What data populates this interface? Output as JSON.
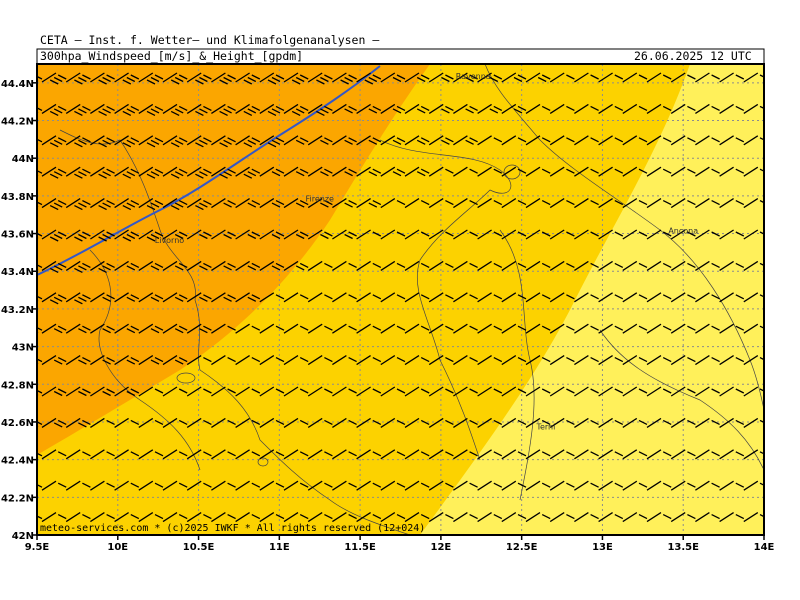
{
  "header": {
    "line1": "CETA — Inst. f. Wetter— und Klimafolgenanalysen —",
    "title": "300hpa_Windspeed_[m/s]_&_Height_[gpdm]",
    "datetime": "26.06.2025 12 UTC"
  },
  "footer": {
    "credit": "meteo-services.com * (c)2025 IWKF * All rights reserved (12+024)"
  },
  "axes": {
    "lon_range": [
      9.5,
      14.0
    ],
    "lat_range": [
      42.0,
      44.5
    ],
    "lon_ticks": [
      "9.5E",
      "10E",
      "10.5E",
      "11E",
      "11.5E",
      "12E",
      "12.5E",
      "13E",
      "13.5E",
      "14E"
    ],
    "lat_ticks": [
      "44.4N",
      "44.2N",
      "44N",
      "43.8N",
      "43.6N",
      "43.4N",
      "43.2N",
      "43N",
      "42.8N",
      "42.6N",
      "42.4N",
      "42.2N",
      "42N"
    ]
  },
  "cities": [
    {
      "name": "Ravenna",
      "lon": 12.2,
      "lat": 44.42
    },
    {
      "name": "Firenze",
      "lon": 11.25,
      "lat": 43.77
    },
    {
      "name": "Livorno",
      "lon": 10.32,
      "lat": 43.55
    },
    {
      "name": "Ancona",
      "lon": 13.5,
      "lat": 43.6
    },
    {
      "name": "Terni",
      "lon": 12.65,
      "lat": 42.56
    }
  ],
  "colors": {
    "band_orange": "#fba600",
    "band_gold": "#fcd200",
    "band_yellow": "#fff05a",
    "height_contour": "#3357c8",
    "grid": "#8c8c8c",
    "barb": "#000000"
  }
}
